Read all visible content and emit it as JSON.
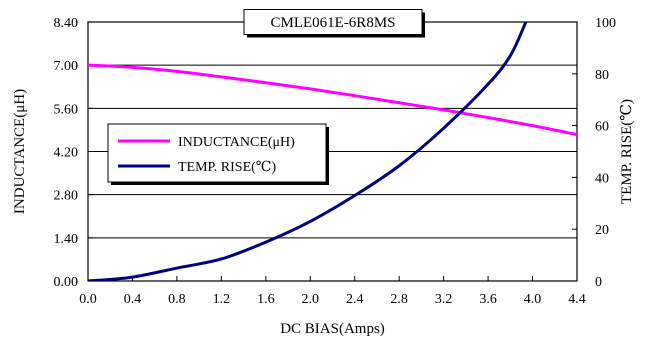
{
  "chart_data": {
    "type": "line",
    "title": "CMLE061E-6R8MS",
    "xlabel": "DC BIAS(Amps)",
    "ylabel_left": "INDUCTANCE(μH)",
    "ylabel_right": "TEMP. RISE(℃)",
    "xlim": [
      0,
      4.4
    ],
    "ylim_left": [
      0,
      8.4
    ],
    "ylim_right": [
      0,
      100
    ],
    "x_ticks": [
      "0.0",
      "0.4",
      "0.8",
      "1.2",
      "1.6",
      "2.0",
      "2.4",
      "2.8",
      "3.2",
      "3.6",
      "4.0",
      "4.4"
    ],
    "y_left_ticks": [
      "0.00",
      "1.40",
      "2.80",
      "4.20",
      "5.60",
      "7.00",
      "8.40"
    ],
    "y_right_ticks": [
      "0",
      "20",
      "40",
      "60",
      "80",
      "100"
    ],
    "grid": true,
    "legend_position": "middle-left",
    "series": [
      {
        "name": "INDUCTANCE(μH)",
        "axis": "left",
        "color": "#ff00ff",
        "x": [
          0.0,
          0.4,
          0.8,
          1.2,
          1.6,
          2.0,
          2.4,
          2.8,
          3.2,
          3.6,
          4.0,
          4.4
        ],
        "values": [
          7.0,
          6.93,
          6.8,
          6.62,
          6.43,
          6.23,
          6.01,
          5.78,
          5.55,
          5.3,
          5.04,
          4.75
        ]
      },
      {
        "name": "TEMP. RISE(℃)",
        "axis": "right",
        "color": "#000080",
        "x": [
          0.0,
          0.4,
          0.8,
          1.2,
          1.6,
          2.0,
          2.4,
          2.8,
          3.2,
          3.6,
          3.8,
          3.94
        ],
        "values": [
          0,
          1.5,
          5,
          8.5,
          15,
          23,
          33,
          44.5,
          59,
          76,
          87,
          100
        ]
      }
    ]
  }
}
